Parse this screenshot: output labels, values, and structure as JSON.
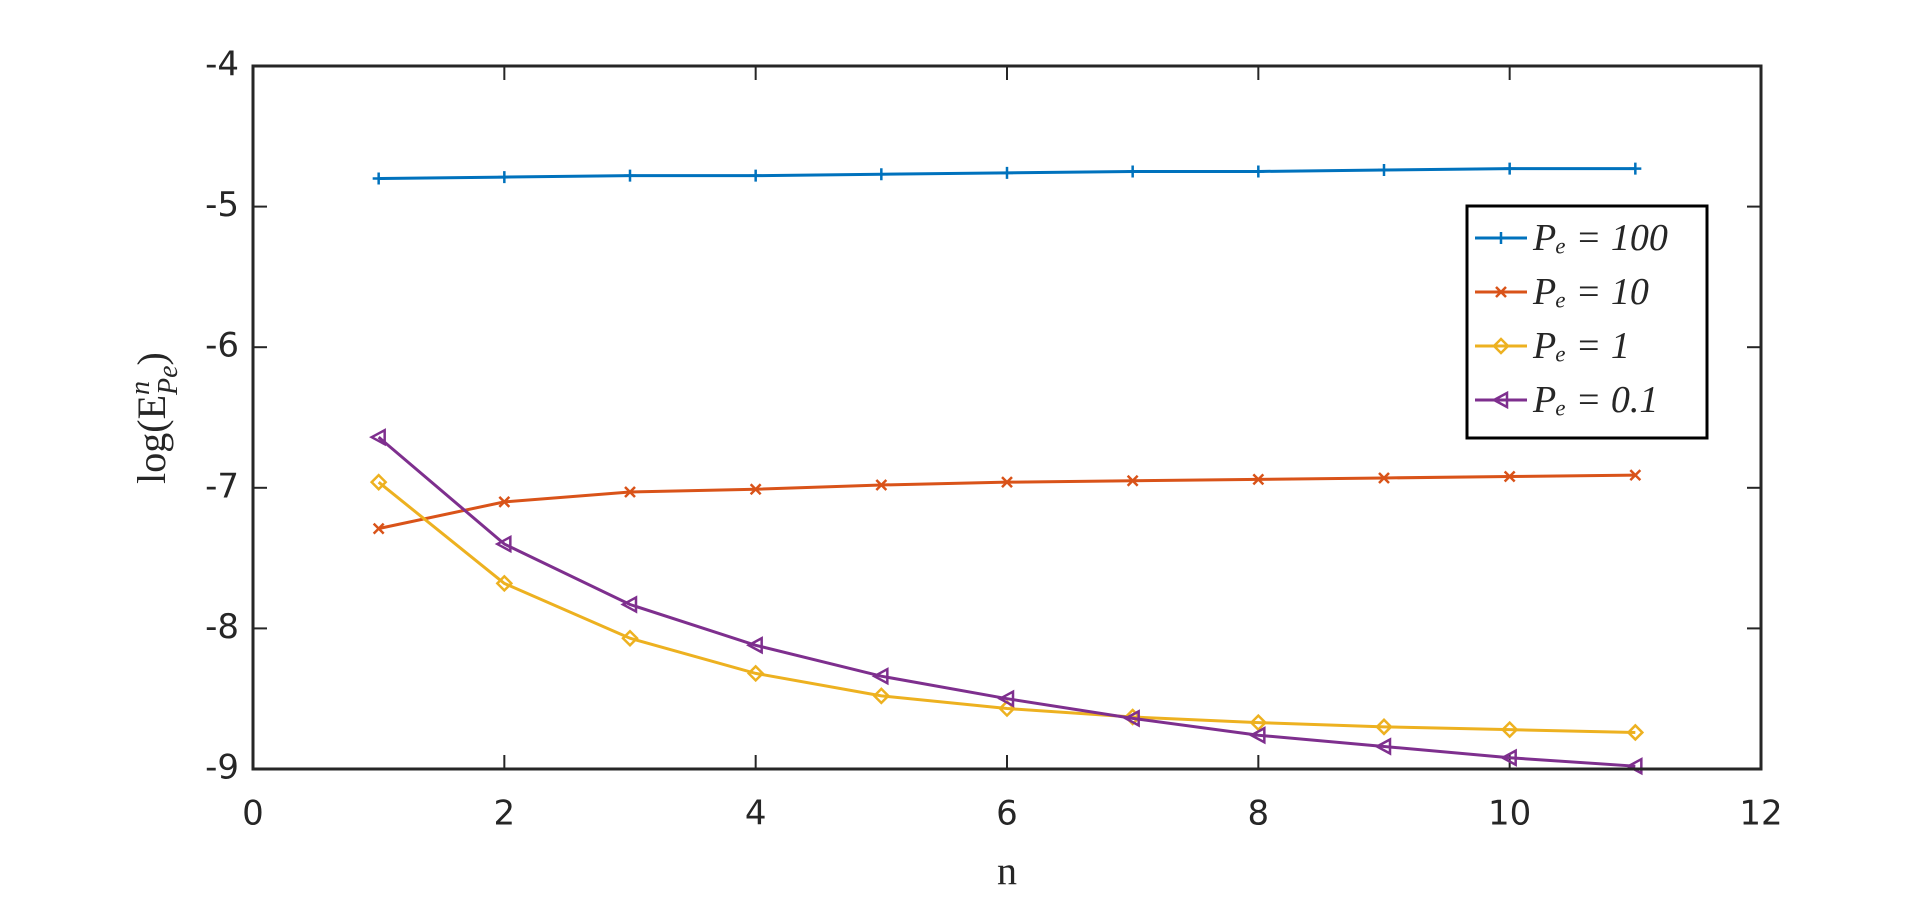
{
  "chart_data": {
    "type": "line",
    "x_label": "n",
    "y_label": {
      "base": "log(E",
      "sup": "n",
      "sub": "Pe",
      "close": ")"
    },
    "x": [
      1,
      2,
      3,
      4,
      5,
      6,
      7,
      8,
      9,
      10,
      11
    ],
    "series": [
      {
        "name": "Pₑ = 100",
        "color": "#0072bd",
        "marker": "plus",
        "values": [
          -4.8,
          -4.79,
          -4.78,
          -4.78,
          -4.77,
          -4.76,
          -4.75,
          -4.75,
          -4.74,
          -4.73,
          -4.73
        ]
      },
      {
        "name": "Pₑ = 10",
        "color": "#d95319",
        "marker": "cross",
        "values": [
          -7.29,
          -7.1,
          -7.03,
          -7.01,
          -6.98,
          -6.96,
          -6.95,
          -6.94,
          -6.93,
          -6.92,
          -6.91
        ]
      },
      {
        "name": "Pₑ = 1",
        "color": "#edb120",
        "marker": "diamond",
        "values": [
          -6.96,
          -7.68,
          -8.07,
          -8.32,
          -8.48,
          -8.57,
          -8.63,
          -8.67,
          -8.7,
          -8.72,
          -8.74
        ]
      },
      {
        "name": "Pₑ = 0.1",
        "color": "#7e2f8e",
        "marker": "triangle-left",
        "values": [
          -6.64,
          -7.4,
          -7.83,
          -8.12,
          -8.34,
          -8.5,
          -8.64,
          -8.76,
          -8.84,
          -8.92,
          -8.98
        ]
      }
    ],
    "xlim": [
      0,
      12
    ],
    "xticks": [
      0,
      2,
      4,
      6,
      8,
      10,
      12
    ],
    "ylim": [
      -9,
      -4
    ],
    "yticks": [
      -4,
      -5,
      -6,
      -7,
      -8,
      -9
    ],
    "legend": "upper-right"
  }
}
